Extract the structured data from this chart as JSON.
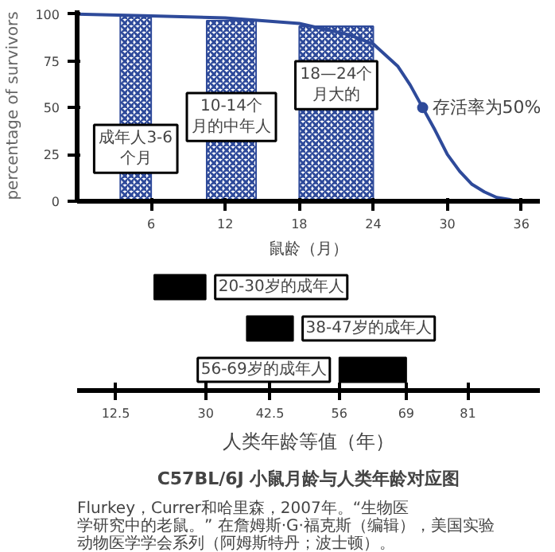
{
  "chart_data": [
    {
      "type": "line",
      "xlabel": "鼠龄（月）",
      "ylabel": "percentage of survivors",
      "x": [
        0,
        6,
        12,
        18,
        22,
        24,
        26,
        27,
        28,
        29,
        30,
        31,
        32,
        33,
        34,
        35,
        35.5
      ],
      "series": [
        {
          "color": "#2e4a9a",
          "values": [
            100,
            99,
            98,
            95,
            89,
            84,
            72,
            62,
            50,
            38,
            25,
            16,
            9,
            5,
            2,
            1,
            0
          ]
        }
      ],
      "xlim": [
        0,
        37.5
      ],
      "ylim": [
        0,
        102
      ],
      "xticks": [
        6,
        12,
        18,
        24,
        30,
        36
      ],
      "yticks": [
        0,
        25,
        50,
        75,
        100
      ],
      "grid": false,
      "marker": "none",
      "bands": [
        {
          "axis": "x",
          "from": 3.5,
          "to": 6,
          "label": "成年人3-6个月",
          "color": "#2e4a9a"
        },
        {
          "axis": "x",
          "from": 10.5,
          "to": 14.5,
          "label": "10-14个月的中年人",
          "color": "#2e4a9a"
        },
        {
          "axis": "x",
          "from": 18,
          "to": 24,
          "label": "18—24个月大的",
          "color": "#2e4a9a"
        }
      ],
      "annotations": [
        {
          "text": "存活率为50%",
          "x": 28,
          "y": 50
        }
      ]
    },
    {
      "type": "bar",
      "orientation": "horizontal",
      "tick_labels": "x",
      "xlabel": "人类年龄等值（年）",
      "title": "C57BL/6J 小鼠月龄与人类年龄对应图",
      "categories": [
        null,
        null,
        null
      ],
      "base": [
        20,
        38,
        56
      ],
      "values": [
        10,
        9,
        13
      ],
      "colors": [
        "#000000",
        "#000000",
        "#000000"
      ],
      "xlim": [
        5,
        95
      ],
      "xticks": [
        12.5,
        30,
        42.5,
        56,
        69,
        81
      ],
      "annotations": [
        "20-30岁的成年人",
        "38-47岁的成年人",
        "56-69岁的成年人",
        "Flurkey，Currer和哈里森，2007年。“生物医学研究中的老鼠。” 在詹姆斯·G·福克斯（编辑），美国实验动物医学学会系列（阿姆斯特丹；波士顿）。"
      ]
    }
  ]
}
